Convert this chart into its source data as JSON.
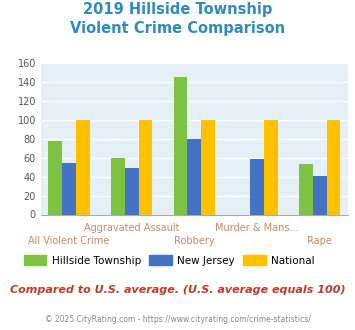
{
  "title_line1": "2019 Hillside Township",
  "title_line2": "Violent Crime Comparison",
  "categories": [
    "All Violent Crime",
    "Aggravated Assault",
    "Robbery",
    "Murder & Mans...",
    "Rape"
  ],
  "hillside": [
    77,
    60,
    145,
    0,
    53
  ],
  "new_jersey": [
    54,
    49,
    80,
    59,
    41
  ],
  "national": [
    100,
    100,
    100,
    100,
    100
  ],
  "colors": {
    "hillside": "#7dc242",
    "new_jersey": "#4472c4",
    "national": "#ffc000",
    "title": "#2e8bc0",
    "bg_plot": "#e4f0f6",
    "grid": "#ffffff",
    "label": "#c8896a",
    "text_compare": "#c0392b",
    "text_footer": "#888888"
  },
  "ylim": [
    0,
    160
  ],
  "yticks": [
    0,
    20,
    40,
    60,
    80,
    100,
    120,
    140,
    160
  ],
  "footnote": "Compared to U.S. average. (U.S. average equals 100)",
  "copyright": "© 2025 CityRating.com - https://www.cityrating.com/crime-statistics/"
}
